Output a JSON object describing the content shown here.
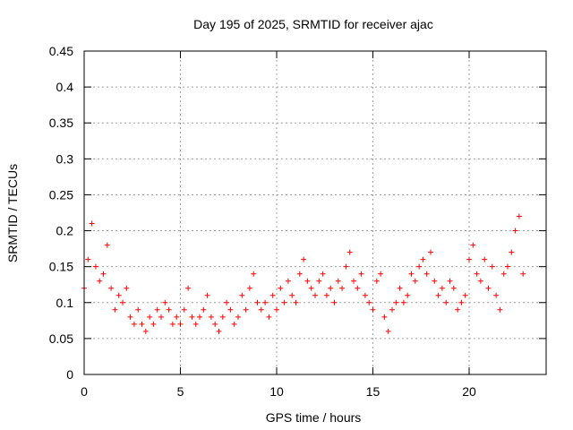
{
  "chart_data": {
    "type": "scatter",
    "title": "Day 195 of 2025, SRMTID for receiver ajac",
    "xlabel": "GPS time / hours",
    "ylabel": "SRMTID / TECUs",
    "xlim": [
      0,
      24
    ],
    "ylim": [
      0,
      0.45
    ],
    "xticks": [
      0,
      5,
      10,
      15,
      20
    ],
    "xtick_labels": [
      "0",
      "5",
      "10",
      "15",
      "20"
    ],
    "yticks": [
      0,
      0.05,
      0.1,
      0.15,
      0.2,
      0.25,
      0.3,
      0.35,
      0.4,
      0.45
    ],
    "ytick_labels": [
      "0",
      "0.05",
      "0.1",
      "0.15",
      "0.2",
      "0.25",
      "0.3",
      "0.35",
      "0.4",
      "0.45"
    ],
    "grid": true,
    "marker": "+",
    "color": "#ff0000",
    "series": [
      {
        "name": "SRMTID",
        "x": [
          0.0,
          0.2,
          0.4,
          0.6,
          0.8,
          1.0,
          1.2,
          1.4,
          1.6,
          1.8,
          2.0,
          2.2,
          2.4,
          2.6,
          2.8,
          3.0,
          3.2,
          3.4,
          3.6,
          3.8,
          4.0,
          4.2,
          4.4,
          4.6,
          4.8,
          5.0,
          5.2,
          5.4,
          5.6,
          5.8,
          6.0,
          6.2,
          6.4,
          6.6,
          6.8,
          7.0,
          7.2,
          7.4,
          7.6,
          7.8,
          8.0,
          8.2,
          8.4,
          8.6,
          8.8,
          9.0,
          9.2,
          9.4,
          9.6,
          9.8,
          10.0,
          10.2,
          10.4,
          10.6,
          10.8,
          11.0,
          11.2,
          11.4,
          11.6,
          11.8,
          12.0,
          12.2,
          12.4,
          12.6,
          12.8,
          13.0,
          13.2,
          13.4,
          13.6,
          13.8,
          14.0,
          14.2,
          14.4,
          14.6,
          14.8,
          15.0,
          15.2,
          15.4,
          15.6,
          15.8,
          16.0,
          16.2,
          16.4,
          16.6,
          16.8,
          17.0,
          17.2,
          17.4,
          17.6,
          17.8,
          18.0,
          18.2,
          18.4,
          18.6,
          18.8,
          19.0,
          19.2,
          19.4,
          19.6,
          19.8,
          20.0,
          20.2,
          20.4,
          20.6,
          20.8,
          21.0,
          21.2,
          21.4,
          21.6,
          21.8,
          22.0,
          22.2,
          22.4,
          22.6,
          22.8
        ],
        "y": [
          0.12,
          0.16,
          0.21,
          0.15,
          0.13,
          0.14,
          0.18,
          0.12,
          0.09,
          0.11,
          0.1,
          0.12,
          0.08,
          0.07,
          0.09,
          0.07,
          0.06,
          0.08,
          0.07,
          0.09,
          0.08,
          0.1,
          0.09,
          0.07,
          0.08,
          0.07,
          0.09,
          0.12,
          0.08,
          0.07,
          0.08,
          0.09,
          0.11,
          0.08,
          0.07,
          0.06,
          0.08,
          0.1,
          0.09,
          0.07,
          0.08,
          0.11,
          0.09,
          0.12,
          0.14,
          0.1,
          0.09,
          0.1,
          0.08,
          0.11,
          0.09,
          0.12,
          0.1,
          0.13,
          0.11,
          0.1,
          0.14,
          0.16,
          0.13,
          0.12,
          0.11,
          0.13,
          0.14,
          0.11,
          0.12,
          0.1,
          0.13,
          0.12,
          0.15,
          0.17,
          0.13,
          0.12,
          0.14,
          0.11,
          0.1,
          0.09,
          0.13,
          0.14,
          0.08,
          0.06,
          0.09,
          0.1,
          0.12,
          0.1,
          0.11,
          0.14,
          0.13,
          0.15,
          0.16,
          0.14,
          0.17,
          0.13,
          0.11,
          0.12,
          0.1,
          0.13,
          0.12,
          0.09,
          0.1,
          0.11,
          0.16,
          0.18,
          0.14,
          0.13,
          0.16,
          0.12,
          0.15,
          0.11,
          0.09,
          0.14,
          0.15,
          0.17,
          0.2,
          0.22,
          0.14
        ]
      }
    ]
  }
}
